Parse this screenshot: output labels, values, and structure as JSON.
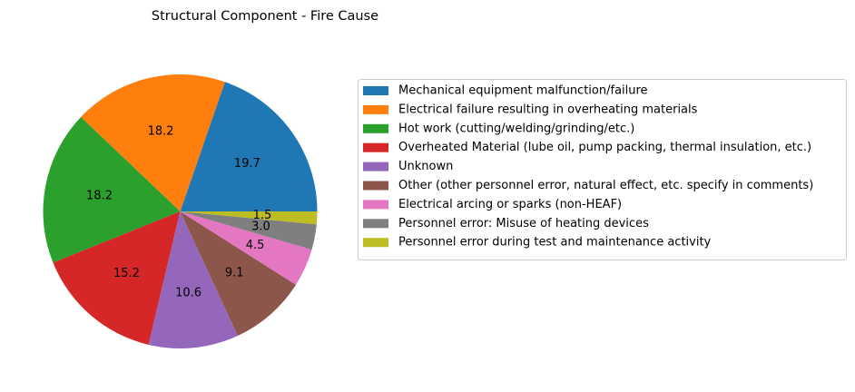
{
  "chart_data": {
    "type": "pie",
    "title": "Structural Component - Fire Cause",
    "legend_position": "right",
    "slices": [
      {
        "label": "Mechanical equipment malfunction/failure",
        "value": 19.7,
        "color": "#1f77b4",
        "display": "19.7"
      },
      {
        "label": "Electrical failure resulting in overheating materials",
        "value": 18.2,
        "color": "#ff7f0e",
        "display": "18.2"
      },
      {
        "label": "Hot work (cutting/welding/grinding/etc.)",
        "value": 18.2,
        "color": "#2ca02c",
        "display": "18.2"
      },
      {
        "label": "Overheated Material (lube oil, pump packing, thermal insulation, etc.)",
        "value": 15.2,
        "color": "#d62728",
        "display": "15.2"
      },
      {
        "label": "Unknown",
        "value": 10.6,
        "color": "#9467bd",
        "display": "10.6"
      },
      {
        "label": "Other (other personnel error, natural effect, etc. specify in comments)",
        "value": 9.1,
        "color": "#8c564b",
        "display": "9.1"
      },
      {
        "label": "Electrical arcing or sparks (non-HEAF)",
        "value": 4.5,
        "color": "#e377c2",
        "display": "4.5"
      },
      {
        "label": "Personnel error: Misuse of heating devices",
        "value": 3.0,
        "color": "#7f7f7f",
        "display": "3.0"
      },
      {
        "label": "Personnel error during test and maintenance activity",
        "value": 1.5,
        "color": "#bcbd22",
        "display": "1.5"
      }
    ]
  }
}
